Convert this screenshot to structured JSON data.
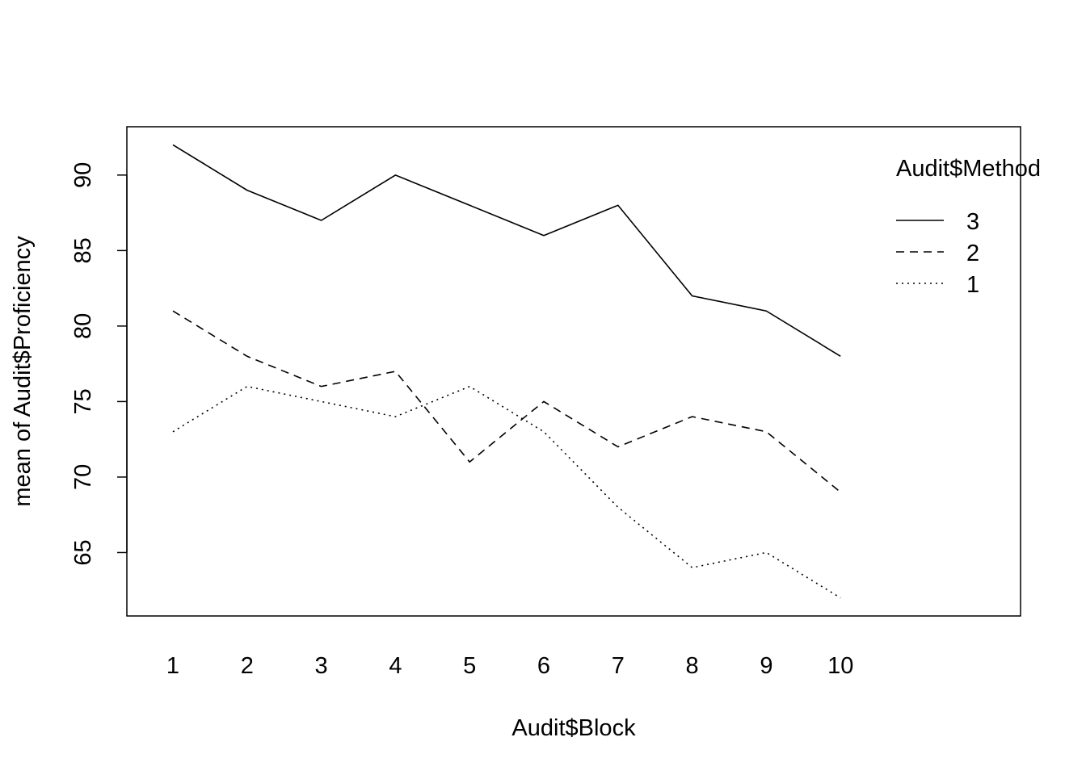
{
  "chart_data": {
    "type": "line",
    "title": "",
    "xlabel": "Audit$Block",
    "ylabel": "mean of  Audit$Proficiency",
    "categories": [
      "1",
      "2",
      "3",
      "4",
      "5",
      "6",
      "7",
      "8",
      "9",
      "10"
    ],
    "ylim": [
      60.8,
      93.2
    ],
    "yticks": [
      65,
      70,
      75,
      80,
      85,
      90
    ],
    "grid": false,
    "legend": {
      "title": "Audit$Method",
      "placement": "top-right"
    },
    "series": [
      {
        "name": "3",
        "dash": "solid",
        "values": [
          92,
          89,
          87,
          90,
          88,
          86,
          88,
          82,
          81,
          78
        ]
      },
      {
        "name": "2",
        "dash": "dashed",
        "values": [
          81,
          78,
          76,
          77,
          71,
          75,
          72,
          74,
          73,
          69
        ]
      },
      {
        "name": "1",
        "dash": "dotted",
        "values": [
          73,
          76,
          75,
          74,
          76,
          73,
          68,
          64,
          65,
          62
        ]
      }
    ]
  }
}
